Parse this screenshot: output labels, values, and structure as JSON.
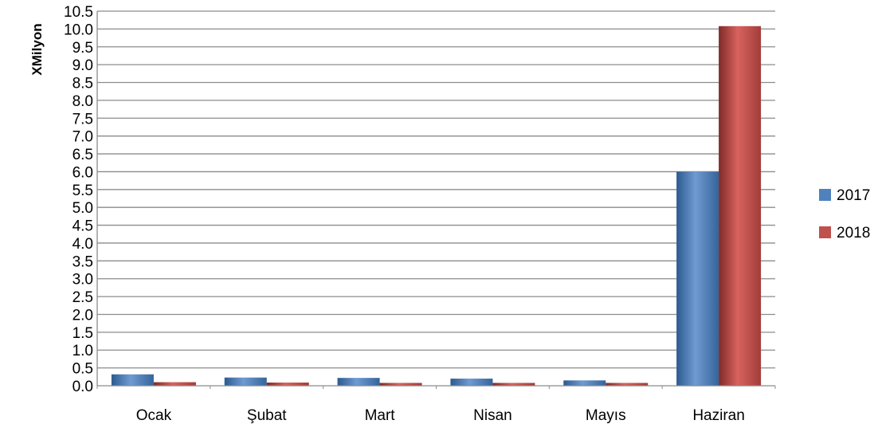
{
  "chart_data": {
    "type": "bar",
    "ylabel": "XMilyon",
    "xlabel": "",
    "categories": [
      "Ocak",
      "Şubat",
      "Mart",
      "Nisan",
      "Mayıs",
      "Haziran"
    ],
    "series": [
      {
        "name": "2017",
        "values": [
          0.32,
          0.23,
          0.22,
          0.2,
          0.15,
          6.0
        ],
        "color": "#4f81bd"
      },
      {
        "name": "2018",
        "values": [
          0.1,
          0.09,
          0.08,
          0.08,
          0.08,
          10.08
        ],
        "color": "#c0504d"
      }
    ],
    "ylim": [
      0,
      10.5
    ],
    "ytick_step": 0.5,
    "grid": true,
    "legend_position": "right"
  }
}
